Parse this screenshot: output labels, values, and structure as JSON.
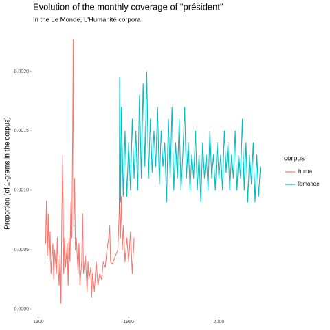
{
  "chart_data": {
    "type": "line",
    "title": "Evolution of the monthly coverage of \"président\"",
    "subtitle": "In the Le Monde, L'Humanité corpora",
    "y_label": "Proportion (of 1-grams in the corpus)",
    "legend_title": "corpus",
    "legend": "right",
    "grid": false,
    "xlim": [
      1897,
      2028
    ],
    "ylim": [
      -6e-05,
      0.00237
    ],
    "xticks": [
      1900,
      1950,
      2000
    ],
    "yticks": [
      {
        "value": 0,
        "label": "0.0000"
      },
      {
        "value": 0.0005,
        "label": "0.0005"
      },
      {
        "value": 0.001,
        "label": "0.0010"
      },
      {
        "value": 0.0015,
        "label": "0.0015"
      },
      {
        "value": 0.002,
        "label": "0.0020"
      }
    ],
    "series": [
      {
        "name": "huma",
        "color": "#f8766d",
        "x": [
          1904,
          1904.5,
          1905,
          1905.5,
          1906,
          1906.5,
          1907,
          1908,
          1908.5,
          1909,
          1910,
          1910.5,
          1911,
          1911.5,
          1912,
          1912.5,
          1913,
          1913.5,
          1914,
          1914.5,
          1915,
          1916,
          1916.5,
          1917,
          1917.5,
          1918,
          1918.5,
          1919,
          1919.3,
          1919.6,
          1920,
          1920.5,
          1921,
          1922,
          1922.5,
          1923,
          1924,
          1924.5,
          1925,
          1926,
          1927,
          1927.5,
          1928,
          1929,
          1929.5,
          1930,
          1931,
          1932,
          1933,
          1934,
          1935,
          1936,
          1937,
          1938,
          1939,
          1939.5,
          1940,
          1941,
          1944,
          1944.5,
          1945,
          1945.5,
          1946,
          1946.5,
          1947,
          1948,
          1949,
          1950,
          1951,
          1952,
          1953
        ],
        "values": [
          0.00055,
          0.00091,
          0.00045,
          0.0008,
          0.0004,
          0.00065,
          0.0003,
          0.00055,
          0.00025,
          0.0005,
          0.0003,
          0.0006,
          0.00035,
          0.0002,
          0.00045,
          5e-05,
          0.0008,
          0.0013,
          0.0003,
          0.0006,
          0.00035,
          0.00055,
          0.0002,
          0.0006,
          0.0004,
          0.0009,
          0.0006,
          0.0015,
          0.00227,
          0.0007,
          0.0011,
          0.0005,
          0.0006,
          0.0003,
          0.00055,
          0.0002,
          0.0004,
          0.0008,
          0.0003,
          0.00045,
          0.00015,
          0.0004,
          0.00025,
          0.00035,
          0.0001,
          0.0003,
          0.00015,
          0.0004,
          0.0002,
          0.0003,
          0.00025,
          0.0004,
          0.00035,
          0.0005,
          0.0006,
          0.0007,
          0.0004,
          0.00038,
          0.0005,
          0.0007,
          0.0009,
          0.0006,
          0.00095,
          0.0005,
          0.0007,
          0.0004,
          0.0006,
          0.0004,
          0.00065,
          0.0003,
          0.0006
        ]
      },
      {
        "name": "lemonde",
        "color": "#00bfc4",
        "x": [
          1944.8,
          1945,
          1945.5,
          1946,
          1947,
          1948,
          1949,
          1950,
          1951,
          1952,
          1953,
          1954,
          1955,
          1956,
          1957,
          1958,
          1959,
          1960,
          1961,
          1962,
          1963,
          1964,
          1965,
          1966,
          1967,
          1968,
          1969,
          1970,
          1971,
          1972,
          1973,
          1974,
          1975,
          1976,
          1977,
          1978,
          1979,
          1980,
          1981,
          1982,
          1983,
          1984,
          1985,
          1986,
          1987,
          1988,
          1989,
          1990,
          1991,
          1992,
          1993,
          1994,
          1995,
          1996,
          1997,
          1998,
          1999,
          2000,
          2001,
          2002,
          2003,
          2004,
          2005,
          2006,
          2007,
          2008,
          2009,
          2010,
          2011,
          2012,
          2013,
          2014,
          2015,
          2016,
          2017,
          2018,
          2019,
          2020,
          2021,
          2022,
          2023
        ],
        "values": [
          0.0008,
          0.00195,
          0.0009,
          0.0017,
          0.00095,
          0.0015,
          0.00095,
          0.0014,
          0.001,
          0.0016,
          0.0011,
          0.0015,
          0.001,
          0.0018,
          0.0011,
          0.0019,
          0.0012,
          0.002,
          0.0011,
          0.0016,
          0.00115,
          0.0015,
          0.0012,
          0.0017,
          0.00105,
          0.0015,
          0.0012,
          0.0014,
          0.0009,
          0.0016,
          0.0011,
          0.0017,
          0.001,
          0.0014,
          0.0011,
          0.0016,
          0.001,
          0.0013,
          0.0017,
          0.0011,
          0.0014,
          0.001,
          0.0013,
          0.0011,
          0.0015,
          0.001,
          0.0013,
          0.0009,
          0.0014,
          0.0011,
          0.0013,
          0.001,
          0.0015,
          0.0011,
          0.0013,
          0.001,
          0.0014,
          0.0011,
          0.0013,
          0.001,
          0.0015,
          0.00115,
          0.0014,
          0.001,
          0.0013,
          0.0011,
          0.0015,
          0.001,
          0.0013,
          0.0011,
          0.0016,
          0.001,
          0.0014,
          0.0009,
          0.0013,
          0.00105,
          0.0014,
          0.0009,
          0.0013,
          0.00095,
          0.0012
        ]
      }
    ]
  }
}
